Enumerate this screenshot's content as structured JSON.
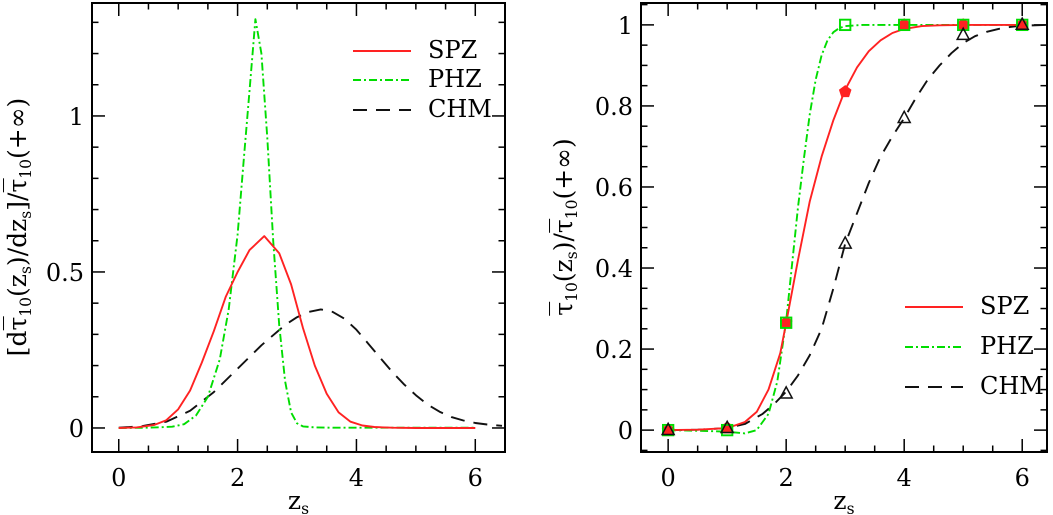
{
  "figure": {
    "background": "#ffffff",
    "frame_color": "#000000",
    "text_color": "#000000"
  },
  "chart_data": [
    {
      "id": "left-panel",
      "type": "line",
      "title": "",
      "xlabel_text": "z_s",
      "ylabel_text": "[d tau-bar_10(z_s)/dz_s] / tau-bar_10(+inf)",
      "xlabel_tokens": [
        {
          "t": "z"
        },
        {
          "t": "s",
          "sub": true
        }
      ],
      "ylabel_tokens": [
        {
          "t": "[d"
        },
        {
          "t": "τ",
          "ovl": true
        },
        {
          "t": "10",
          "sub": true
        },
        {
          "t": "(z"
        },
        {
          "t": "s",
          "sub": true
        },
        {
          "t": ")/dz"
        },
        {
          "t": "s",
          "sub": true
        },
        {
          "t": "]/"
        },
        {
          "t": "τ",
          "ovl": true
        },
        {
          "t": "10",
          "sub": true
        },
        {
          "t": "(+∞)"
        }
      ],
      "xlim": [
        -0.45,
        6.5
      ],
      "ylim": [
        -0.077,
        1.362
      ],
      "grid": false,
      "xticks": {
        "values": [
          0,
          2,
          4,
          6
        ],
        "labels": [
          "0",
          "2",
          "4",
          "6"
        ],
        "minor_step": 0.5
      },
      "yticks": {
        "values": [
          0,
          0.5,
          1
        ],
        "labels": [
          "0",
          "0.5",
          "1"
        ],
        "minor_step": 0.1
      },
      "legend": {
        "position": "top-right",
        "entries": [
          {
            "label": "SPZ",
            "color": "#ff2222",
            "style": "solid"
          },
          {
            "label": "PHZ",
            "color": "#00dd00",
            "style": "dashdot"
          },
          {
            "label": "CHM",
            "color": "#111111",
            "style": "longdash"
          }
        ]
      },
      "series": [
        {
          "name": "SPZ",
          "color": "#ff2222",
          "style": "solid",
          "points": [
            [
              0,
              0
            ],
            [
              0.3,
              0.002
            ],
            [
              0.6,
              0.01
            ],
            [
              0.8,
              0.025
            ],
            [
              1.0,
              0.06
            ],
            [
              1.2,
              0.12
            ],
            [
              1.4,
              0.21
            ],
            [
              1.6,
              0.31
            ],
            [
              1.8,
              0.42
            ],
            [
              2.0,
              0.5
            ],
            [
              2.2,
              0.57
            ],
            [
              2.45,
              0.615
            ],
            [
              2.7,
              0.56
            ],
            [
              2.9,
              0.46
            ],
            [
              3.1,
              0.32
            ],
            [
              3.3,
              0.2
            ],
            [
              3.5,
              0.11
            ],
            [
              3.7,
              0.05
            ],
            [
              3.9,
              0.02
            ],
            [
              4.1,
              0.008
            ],
            [
              4.3,
              0.003
            ],
            [
              4.6,
              0.001
            ],
            [
              5.0,
              0
            ],
            [
              5.5,
              0
            ],
            [
              6.0,
              0
            ]
          ]
        },
        {
          "name": "PHZ",
          "color": "#00dd00",
          "style": "dashdot",
          "points": [
            [
              0,
              0
            ],
            [
              0.5,
              0.001
            ],
            [
              0.9,
              0.004
            ],
            [
              1.1,
              0.012
            ],
            [
              1.3,
              0.04
            ],
            [
              1.5,
              0.1
            ],
            [
              1.7,
              0.22
            ],
            [
              1.85,
              0.38
            ],
            [
              2.0,
              0.62
            ],
            [
              2.1,
              0.85
            ],
            [
              2.2,
              1.08
            ],
            [
              2.3,
              1.31
            ],
            [
              2.4,
              1.2
            ],
            [
              2.5,
              0.93
            ],
            [
              2.6,
              0.6
            ],
            [
              2.7,
              0.33
            ],
            [
              2.8,
              0.15
            ],
            [
              2.9,
              0.05
            ],
            [
              3.0,
              0.015
            ],
            [
              3.1,
              0.005
            ],
            [
              3.3,
              0.002
            ],
            [
              3.6,
              0.001
            ],
            [
              4.0,
              0.001
            ],
            [
              5.0,
              0.001
            ],
            [
              6.0,
              0.001
            ]
          ]
        },
        {
          "name": "CHM",
          "color": "#111111",
          "style": "longdash",
          "points": [
            [
              0,
              0.001
            ],
            [
              0.4,
              0.006
            ],
            [
              0.8,
              0.02
            ],
            [
              1.2,
              0.055
            ],
            [
              1.6,
              0.115
            ],
            [
              2.0,
              0.19
            ],
            [
              2.4,
              0.265
            ],
            [
              2.8,
              0.33
            ],
            [
              3.0,
              0.355
            ],
            [
              3.2,
              0.372
            ],
            [
              3.4,
              0.38
            ],
            [
              3.6,
              0.372
            ],
            [
              3.8,
              0.35
            ],
            [
              4.0,
              0.315
            ],
            [
              4.2,
              0.27
            ],
            [
              4.4,
              0.225
            ],
            [
              4.6,
              0.18
            ],
            [
              4.8,
              0.14
            ],
            [
              5.0,
              0.105
            ],
            [
              5.2,
              0.075
            ],
            [
              5.4,
              0.052
            ],
            [
              5.6,
              0.035
            ],
            [
              5.8,
              0.024
            ],
            [
              6.0,
              0.016
            ],
            [
              6.2,
              0.011
            ],
            [
              6.45,
              0.007
            ]
          ]
        }
      ]
    },
    {
      "id": "right-panel",
      "type": "line",
      "title": "",
      "xlabel_text": "z_s",
      "ylabel_text": "tau-bar_10(z_s) / tau-bar_10(+inf)",
      "xlabel_tokens": [
        {
          "t": "z"
        },
        {
          "t": "s",
          "sub": true
        }
      ],
      "ylabel_tokens": [
        {
          "t": "τ",
          "ovl": true
        },
        {
          "t": "10",
          "sub": true
        },
        {
          "t": "(z"
        },
        {
          "t": "s",
          "sub": true
        },
        {
          "t": ")/"
        },
        {
          "t": "τ",
          "ovl": true
        },
        {
          "t": "10",
          "sub": true
        },
        {
          "t": "(+∞)"
        }
      ],
      "xlim": [
        -0.46,
        6.42
      ],
      "ylim": [
        -0.054,
        1.054
      ],
      "grid": false,
      "xticks": {
        "values": [
          0,
          2,
          4,
          6
        ],
        "labels": [
          "0",
          "2",
          "4",
          "6"
        ],
        "minor_step": 0.5
      },
      "yticks": {
        "values": [
          0,
          0.2,
          0.4,
          0.6,
          0.8,
          1
        ],
        "labels": [
          "0",
          "0.2",
          "0.4",
          "0.6",
          "0.8",
          "1"
        ],
        "minor_step": 0.05
      },
      "legend": {
        "position": "bottom-right",
        "entries": [
          {
            "label": "SPZ",
            "color": "#ff2222",
            "style": "solid"
          },
          {
            "label": "PHZ",
            "color": "#00dd00",
            "style": "dashdot"
          },
          {
            "label": "CHM",
            "color": "#111111",
            "style": "longdash"
          }
        ]
      },
      "series": [
        {
          "name": "SPZ",
          "color": "#ff2222",
          "style": "solid",
          "marker": "filled-pentagon",
          "points": [
            [
              0,
              0
            ],
            [
              0.5,
              0.001
            ],
            [
              1.0,
              0.005
            ],
            [
              1.3,
              0.02
            ],
            [
              1.5,
              0.045
            ],
            [
              1.7,
              0.1
            ],
            [
              1.9,
              0.19
            ],
            [
              2.0,
              0.265
            ],
            [
              2.2,
              0.42
            ],
            [
              2.4,
              0.565
            ],
            [
              2.6,
              0.675
            ],
            [
              2.8,
              0.765
            ],
            [
              3.0,
              0.84
            ],
            [
              3.2,
              0.895
            ],
            [
              3.4,
              0.935
            ],
            [
              3.6,
              0.962
            ],
            [
              3.8,
              0.98
            ],
            [
              4.0,
              0.99
            ],
            [
              4.3,
              0.997
            ],
            [
              4.6,
              0.999
            ],
            [
              5.0,
              1
            ],
            [
              6.1,
              1
            ]
          ],
          "data_points": [
            [
              0,
              0
            ],
            [
              1,
              0.005
            ],
            [
              2,
              0.265
            ],
            [
              3,
              0.835
            ],
            [
              4,
              1.0
            ],
            [
              5,
              1.0
            ],
            [
              6,
              1.0
            ]
          ]
        },
        {
          "name": "PHZ",
          "color": "#00dd00",
          "style": "dashdot",
          "marker": "open-square",
          "points": [
            [
              0,
              0
            ],
            [
              0.6,
              -0.002
            ],
            [
              1.0,
              -0.004
            ],
            [
              1.3,
              -0.008
            ],
            [
              1.5,
              0.0
            ],
            [
              1.7,
              0.04
            ],
            [
              1.85,
              0.12
            ],
            [
              2.0,
              0.27
            ],
            [
              2.1,
              0.41
            ],
            [
              2.2,
              0.55
            ],
            [
              2.3,
              0.67
            ],
            [
              2.4,
              0.78
            ],
            [
              2.5,
              0.865
            ],
            [
              2.6,
              0.925
            ],
            [
              2.7,
              0.962
            ],
            [
              2.8,
              0.982
            ],
            [
              2.9,
              0.992
            ],
            [
              3.0,
              0.997
            ],
            [
              3.3,
              1
            ],
            [
              6.1,
              1
            ]
          ],
          "data_points": [
            [
              0,
              0
            ],
            [
              1,
              0.0
            ],
            [
              2,
              0.265
            ],
            [
              3,
              1.0
            ],
            [
              4,
              1.0
            ],
            [
              5,
              1.0
            ],
            [
              6,
              1.0
            ]
          ]
        },
        {
          "name": "CHM",
          "color": "#111111",
          "style": "longdash",
          "marker": "open-triangle",
          "points": [
            [
              0,
              0
            ],
            [
              0.5,
              0.001
            ],
            [
              1.0,
              0.005
            ],
            [
              1.3,
              0.015
            ],
            [
              1.6,
              0.04
            ],
            [
              1.8,
              0.065
            ],
            [
              2.0,
              0.095
            ],
            [
              2.2,
              0.135
            ],
            [
              2.4,
              0.185
            ],
            [
              2.6,
              0.25
            ],
            [
              2.8,
              0.35
            ],
            [
              3.0,
              0.46
            ],
            [
              3.2,
              0.535
            ],
            [
              3.4,
              0.61
            ],
            [
              3.6,
              0.675
            ],
            [
              3.8,
              0.725
            ],
            [
              4.0,
              0.77
            ],
            [
              4.2,
              0.82
            ],
            [
              4.4,
              0.865
            ],
            [
              4.6,
              0.9
            ],
            [
              4.8,
              0.93
            ],
            [
              5.0,
              0.955
            ],
            [
              5.2,
              0.972
            ],
            [
              5.4,
              0.983
            ],
            [
              5.6,
              0.99
            ],
            [
              5.8,
              0.995
            ],
            [
              6.0,
              0.998
            ],
            [
              6.4,
              1.0
            ]
          ],
          "data_points": [
            [
              0,
              0
            ],
            [
              1,
              0.005
            ],
            [
              2,
              0.09
            ],
            [
              3,
              0.46
            ],
            [
              4,
              0.77
            ],
            [
              5,
              0.975
            ],
            [
              6,
              1.0
            ]
          ]
        }
      ]
    }
  ]
}
